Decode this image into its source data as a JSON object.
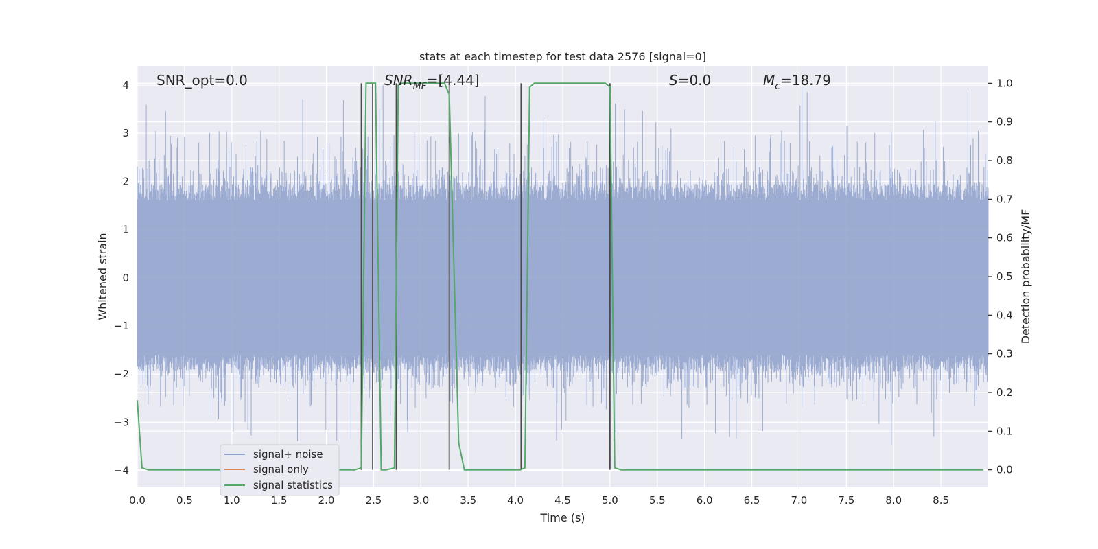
{
  "chart_data": {
    "type": "line",
    "title": "stats at each timestep for test data 2576 [signal=0]",
    "xlabel": "Time (s)",
    "ylabel_left": "Whitened strain",
    "ylabel_right": "Detection probability/MF",
    "xlim": [
      0.0,
      9.0
    ],
    "ylim_left": [
      -4.35,
      4.4
    ],
    "ylim_right": [
      -0.045,
      1.045
    ],
    "x_ticks": [
      "0.0",
      "0.5",
      "1.0",
      "1.5",
      "2.0",
      "2.5",
      "3.0",
      "3.5",
      "4.0",
      "4.5",
      "5.0",
      "5.5",
      "6.0",
      "6.5",
      "7.0",
      "7.5",
      "8.0",
      "8.5"
    ],
    "y_left_ticks": [
      "−4",
      "−3",
      "−2",
      "−1",
      "0",
      "1",
      "2",
      "3",
      "4"
    ],
    "y_right_ticks": [
      "0.0",
      "0.1",
      "0.2",
      "0.3",
      "0.4",
      "0.5",
      "0.6",
      "0.7",
      "0.8",
      "0.9",
      "1.0"
    ],
    "grid": true,
    "legend_position": "lower-left",
    "annotations": {
      "snr_opt": "SNR_opt=0.0",
      "snr_mf_label": "SNR",
      "snr_mf_sub": "MF",
      "snr_mf_value": "=[4.44]",
      "s_label": "S",
      "s_value": "=0.0",
      "mc_label": "M",
      "mc_sub": "c",
      "mc_value": "=18.79"
    },
    "series": [
      {
        "name": "signal+ noise",
        "axis": "left",
        "color": "#8da0cb",
        "kind": "noise",
        "core_band": [
          -1.6,
          1.6
        ],
        "spike_range": [
          -3.5,
          4.0
        ],
        "x_range": [
          0.0,
          9.0
        ]
      },
      {
        "name": "signal only",
        "axis": "left",
        "color": "#dd8452",
        "x": [
          0.0,
          9.0
        ],
        "y": [
          0.0,
          0.0
        ]
      },
      {
        "name": "signal statistics",
        "axis": "right",
        "color": "#55a868",
        "x": [
          0.0,
          0.05,
          0.12,
          2.3,
          2.37,
          2.42,
          2.48,
          2.52,
          2.58,
          2.63,
          2.72,
          2.76,
          2.8,
          2.86,
          3.25,
          3.3,
          3.4,
          3.46,
          4.05,
          4.1,
          4.15,
          4.2,
          4.95,
          5.0,
          5.05,
          5.12,
          8.95
        ],
        "y": [
          0.18,
          0.005,
          0.0,
          0.0,
          0.005,
          1.0,
          1.0,
          1.0,
          0.0,
          0.0,
          0.005,
          0.995,
          1.0,
          1.0,
          1.0,
          0.97,
          0.07,
          0.0,
          0.0,
          0.005,
          0.99,
          1.0,
          1.0,
          0.99,
          0.005,
          0.0,
          0.0
        ]
      }
    ],
    "vertical_markers": [
      2.37,
      2.49,
      2.74,
      3.3,
      4.06,
      5.0
    ]
  },
  "colors": {
    "axes_bg": "#eaeaf2",
    "grid": "#ffffff",
    "marker": "#4a4a4a"
  }
}
